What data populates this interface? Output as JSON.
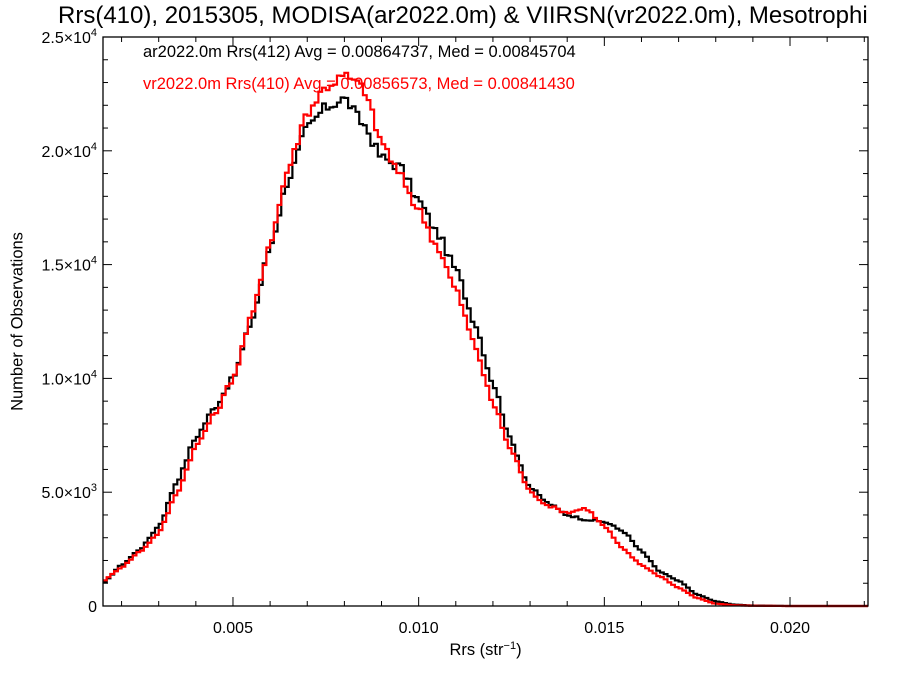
{
  "title": "Rrs(410), 2015305, MODISA(ar2022.0m) & VIIRSN(vr2022.0m), Mesotrophi",
  "chart_data": {
    "type": "line",
    "style": "step histogram",
    "xlabel_base": "Rrs (str",
    "xlabel_sup": "−1",
    "xlabel_end": ")",
    "ylabel": "Number of Observations",
    "xlim": [
      0.0015,
      0.0221
    ],
    "ylim": [
      0,
      25000
    ],
    "x_ticks": [
      {
        "value": 0.005,
        "label": "0.005"
      },
      {
        "value": 0.01,
        "label": "0.010"
      },
      {
        "value": 0.015,
        "label": "0.015"
      },
      {
        "value": 0.02,
        "label": "0.020"
      }
    ],
    "y_ticks": [
      {
        "value": 0,
        "mant": "0",
        "exp": ""
      },
      {
        "value": 5000,
        "mant": "5.0×10",
        "exp": "3"
      },
      {
        "value": 10000,
        "mant": "1.0×10",
        "exp": "4"
      },
      {
        "value": 15000,
        "mant": "1.5×10",
        "exp": "4"
      },
      {
        "value": 20000,
        "mant": "2.0×10",
        "exp": "4"
      },
      {
        "value": 25000,
        "mant": "2.5×10",
        "exp": "4"
      }
    ],
    "series": [
      {
        "label": "ar2022.0m Rrs(412) Avg = 0.00864737, Med = 0.00845704",
        "color": "#000000",
        "points": [
          [
            0.0015,
            1000
          ],
          [
            0.002,
            1800
          ],
          [
            0.0025,
            2500
          ],
          [
            0.003,
            3500
          ],
          [
            0.0035,
            5500
          ],
          [
            0.004,
            7400
          ],
          [
            0.0045,
            8700
          ],
          [
            0.005,
            10000
          ],
          [
            0.0055,
            12500
          ],
          [
            0.006,
            15800
          ],
          [
            0.0065,
            18800
          ],
          [
            0.007,
            21000
          ],
          [
            0.0075,
            21900
          ],
          [
            0.008,
            22300
          ],
          [
            0.0085,
            21200
          ],
          [
            0.009,
            19700
          ],
          [
            0.0095,
            19300
          ],
          [
            0.01,
            17800
          ],
          [
            0.0105,
            16400
          ],
          [
            0.011,
            14800
          ],
          [
            0.0115,
            12500
          ],
          [
            0.012,
            9800
          ],
          [
            0.0125,
            7200
          ],
          [
            0.013,
            5200
          ],
          [
            0.0135,
            4500
          ],
          [
            0.014,
            4000
          ],
          [
            0.0145,
            3800
          ],
          [
            0.015,
            3700
          ],
          [
            0.0155,
            3300
          ],
          [
            0.016,
            2400
          ],
          [
            0.0165,
            1500
          ],
          [
            0.017,
            1100
          ],
          [
            0.0175,
            500
          ],
          [
            0.018,
            200
          ],
          [
            0.0185,
            60
          ],
          [
            0.019,
            20
          ],
          [
            0.02,
            0
          ],
          [
            0.0221,
            0
          ]
        ]
      },
      {
        "label": "vr2022.0m Rrs(410) Avg = 0.00856573, Med = 0.00841430",
        "color": "#ff0000",
        "points": [
          [
            0.0015,
            1100
          ],
          [
            0.002,
            1700
          ],
          [
            0.0025,
            2400
          ],
          [
            0.003,
            3200
          ],
          [
            0.0035,
            5000
          ],
          [
            0.004,
            7000
          ],
          [
            0.0045,
            8400
          ],
          [
            0.005,
            10000
          ],
          [
            0.0055,
            12700
          ],
          [
            0.006,
            16000
          ],
          [
            0.0065,
            19300
          ],
          [
            0.007,
            21700
          ],
          [
            0.0075,
            22800
          ],
          [
            0.008,
            23300
          ],
          [
            0.0085,
            22800
          ],
          [
            0.009,
            20400
          ],
          [
            0.0095,
            18900
          ],
          [
            0.01,
            17400
          ],
          [
            0.0105,
            15800
          ],
          [
            0.011,
            13900
          ],
          [
            0.0115,
            11500
          ],
          [
            0.012,
            8900
          ],
          [
            0.0125,
            6800
          ],
          [
            0.013,
            5000
          ],
          [
            0.0135,
            4400
          ],
          [
            0.014,
            4100
          ],
          [
            0.0145,
            4300
          ],
          [
            0.015,
            3500
          ],
          [
            0.0155,
            2500
          ],
          [
            0.016,
            1800
          ],
          [
            0.0165,
            1300
          ],
          [
            0.017,
            800
          ],
          [
            0.0175,
            350
          ],
          [
            0.018,
            100
          ],
          [
            0.0185,
            30
          ],
          [
            0.019,
            10
          ],
          [
            0.02,
            0
          ],
          [
            0.0221,
            0
          ]
        ]
      }
    ]
  }
}
